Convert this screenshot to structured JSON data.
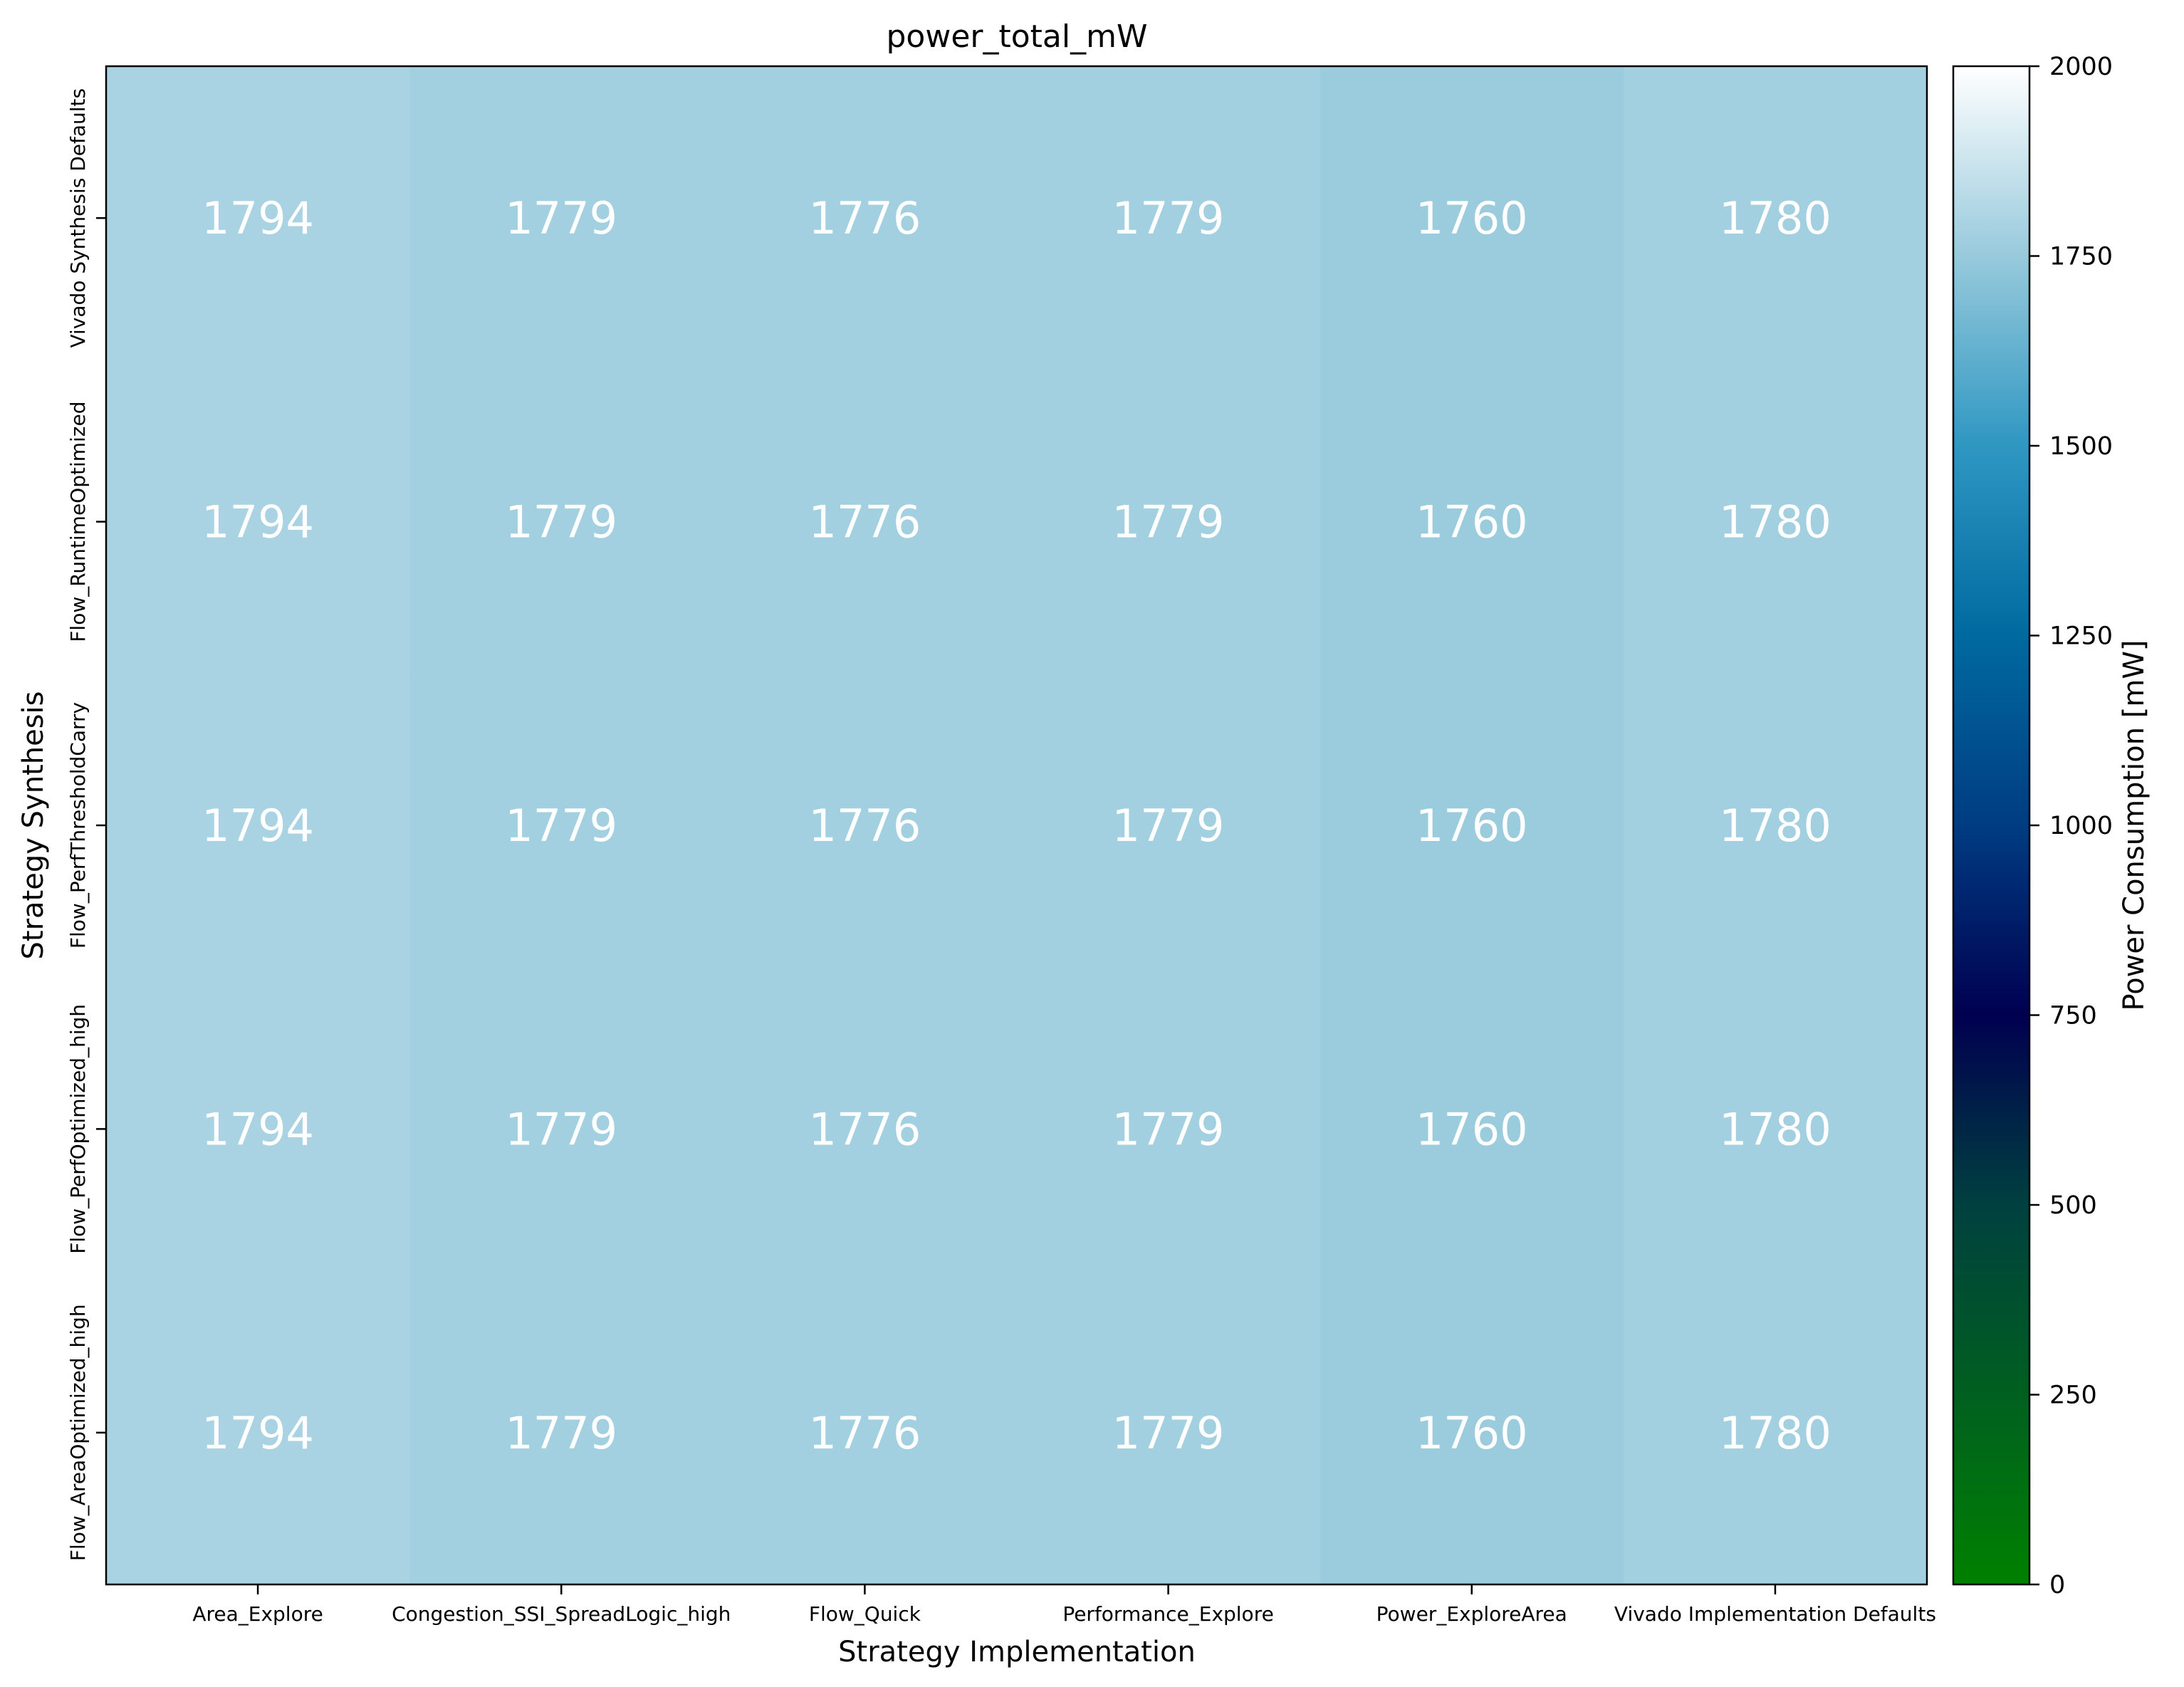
{
  "chart_data": {
    "type": "heatmap",
    "title": "power_total_mW",
    "xlabel": "Strategy Implementation",
    "ylabel": "Strategy Synthesis",
    "x_categories": [
      "Area_Explore",
      "Congestion_SSI_SpreadLogic_high",
      "Flow_Quick",
      "Performance_Explore",
      "Power_ExploreArea",
      "Vivado Implementation Defaults"
    ],
    "y_categories": [
      "Vivado Synthesis Defaults",
      "Flow_RuntimeOptimized",
      "Flow_PerfThresholdCarry",
      "Flow_PerfOptimized_high",
      "Flow_AreaOptimized_high"
    ],
    "values": [
      [
        1794,
        1779,
        1776,
        1779,
        1760,
        1780
      ],
      [
        1794,
        1779,
        1776,
        1779,
        1760,
        1780
      ],
      [
        1794,
        1779,
        1776,
        1779,
        1760,
        1780
      ],
      [
        1794,
        1779,
        1776,
        1779,
        1760,
        1780
      ],
      [
        1794,
        1779,
        1776,
        1779,
        1760,
        1780
      ]
    ],
    "colorbar": {
      "label": "Power Consumption [mW]",
      "range": [
        0,
        2000
      ],
      "ticks": [
        0,
        250,
        500,
        750,
        1000,
        1250,
        1500,
        1750,
        2000
      ],
      "colormap": "ocean_r",
      "colormap_stops": [
        {
          "value": 0,
          "color": "#008000"
        },
        {
          "value": 500,
          "color": "#00403f"
        },
        {
          "value": 750,
          "color": "#000050"
        },
        {
          "value": 1000,
          "color": "#003c82"
        },
        {
          "value": 1250,
          "color": "#006aa0"
        },
        {
          "value": 1500,
          "color": "#2f97c2"
        },
        {
          "value": 1750,
          "color": "#97cadc"
        },
        {
          "value": 2000,
          "color": "#ffffff"
        }
      ]
    },
    "annotation_color": "#ffffff"
  }
}
